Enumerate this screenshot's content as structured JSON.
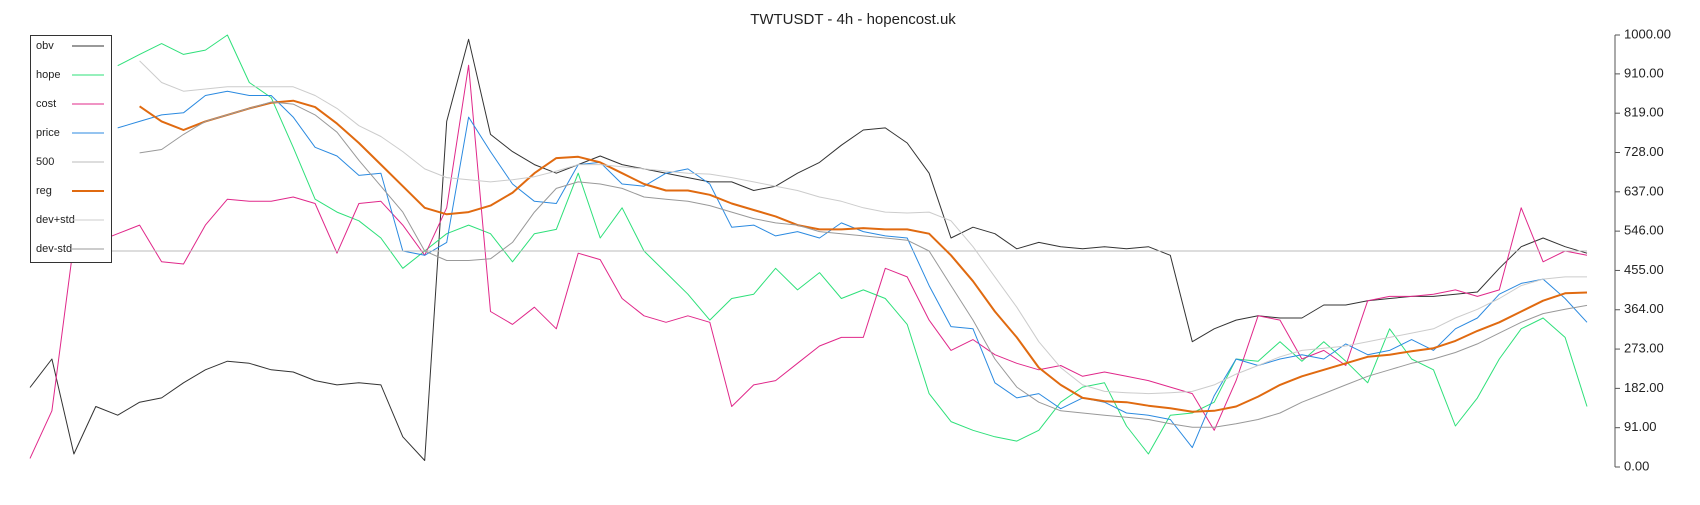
{
  "chart_data": {
    "type": "line",
    "title": "TWTUSDT - 4h - hopencost.uk",
    "ylim": [
      0,
      1000
    ],
    "yticks": [
      {
        "value": 0,
        "label": "0.00"
      },
      {
        "value": 91,
        "label": "91.00"
      },
      {
        "value": 182,
        "label": "182.00"
      },
      {
        "value": 273,
        "label": "273.00"
      },
      {
        "value": 364,
        "label": "364.00"
      },
      {
        "value": 455,
        "label": "455.00"
      },
      {
        "value": 546,
        "label": "546.00"
      },
      {
        "value": 637,
        "label": "637.00"
      },
      {
        "value": 728,
        "label": "728.00"
      },
      {
        "value": 819,
        "label": "819.00"
      },
      {
        "value": 910,
        "label": "910.00"
      },
      {
        "value": 1000,
        "label": "1000.00"
      }
    ],
    "yaxis_side": "right",
    "legend": "upper left",
    "series": [
      {
        "name": "obv",
        "color": "#333333",
        "width": 1,
        "values": [
          184,
          250,
          30,
          140,
          120,
          150,
          160,
          195,
          225,
          245,
          240,
          225,
          220,
          200,
          190,
          195,
          190,
          70,
          15,
          800,
          990,
          770,
          730,
          700,
          680,
          700,
          720,
          700,
          690,
          680,
          670,
          660,
          660,
          640,
          650,
          680,
          705,
          745,
          780,
          785,
          750,
          680,
          530,
          555,
          540,
          505,
          520,
          510,
          505,
          510,
          505,
          510,
          490,
          290,
          320,
          340,
          350,
          345,
          345,
          375,
          375,
          385,
          390,
          395,
          395,
          400,
          405,
          460,
          510,
          530,
          510,
          495
        ]
      },
      {
        "name": "hope",
        "color": "#2ee07a",
        "width": 1,
        "values": [
          null,
          null,
          null,
          null,
          929,
          955,
          980,
          955,
          965,
          1000,
          890,
          855,
          740,
          620,
          590,
          570,
          530,
          460,
          500,
          540,
          560,
          540,
          475,
          540,
          550,
          680,
          530,
          600,
          500,
          450,
          400,
          340,
          390,
          400,
          460,
          410,
          450,
          390,
          410,
          390,
          330,
          170,
          105,
          85,
          70,
          60,
          85,
          150,
          185,
          195,
          95,
          30,
          120,
          125,
          150,
          250,
          245,
          290,
          245,
          290,
          245,
          195,
          320,
          250,
          225,
          95,
          160,
          250,
          320,
          345,
          300,
          140
        ]
      },
      {
        "name": "cost",
        "color": "#e0288a",
        "width": 1,
        "values": [
          20,
          130,
          520,
          520,
          540,
          560,
          475,
          470,
          560,
          620,
          615,
          615,
          625,
          610,
          495,
          610,
          615,
          560,
          490,
          600,
          930,
          360,
          330,
          370,
          320,
          495,
          480,
          390,
          350,
          335,
          350,
          335,
          140,
          190,
          200,
          240,
          280,
          300,
          300,
          460,
          440,
          340,
          270,
          295,
          260,
          240,
          225,
          235,
          210,
          220,
          210,
          200,
          185,
          170,
          85,
          200,
          350,
          340,
          250,
          270,
          235,
          385,
          395,
          395,
          400,
          410,
          395,
          410,
          600,
          475,
          500,
          490
        ]
      },
      {
        "name": "price",
        "color": "#2b8ae0",
        "width": 1,
        "values": [
          null,
          null,
          null,
          null,
          785,
          800,
          815,
          820,
          860,
          870,
          860,
          860,
          810,
          740,
          720,
          675,
          680,
          500,
          490,
          520,
          810,
          730,
          655,
          615,
          610,
          700,
          705,
          655,
          650,
          680,
          690,
          655,
          555,
          560,
          535,
          545,
          530,
          565,
          545,
          535,
          530,
          420,
          325,
          320,
          195,
          160,
          170,
          135,
          160,
          150,
          125,
          120,
          110,
          45,
          165,
          250,
          235,
          250,
          260,
          250,
          285,
          260,
          270,
          295,
          270,
          320,
          345,
          400,
          425,
          435,
          390,
          335
        ]
      },
      {
        "name": "500",
        "color": "#bbbbbb",
        "width": 1,
        "values": [
          500,
          500,
          500,
          500,
          500,
          500,
          500,
          500,
          500,
          500,
          500,
          500,
          500,
          500,
          500,
          500,
          500,
          500,
          500,
          500,
          500,
          500,
          500,
          500,
          500,
          500,
          500,
          500,
          500,
          500,
          500,
          500,
          500,
          500,
          500,
          500,
          500,
          500,
          500,
          500,
          500,
          500,
          500,
          500,
          500,
          500,
          500,
          500,
          500,
          500,
          500,
          500,
          500,
          500,
          500,
          500,
          500,
          500,
          500,
          500,
          500,
          500,
          500,
          500,
          500,
          500,
          500,
          500,
          500,
          500,
          500,
          500
        ]
      },
      {
        "name": "reg",
        "color": "#e06a10",
        "width": 2,
        "values": [
          null,
          null,
          null,
          null,
          null,
          835,
          800,
          780,
          800,
          815,
          830,
          843,
          848,
          833,
          795,
          750,
          700,
          650,
          600,
          585,
          590,
          605,
          635,
          680,
          715,
          718,
          705,
          680,
          655,
          640,
          640,
          630,
          610,
          595,
          580,
          560,
          550,
          550,
          553,
          550,
          550,
          540,
          490,
          430,
          360,
          300,
          230,
          190,
          160,
          152,
          150,
          142,
          136,
          128,
          130,
          140,
          163,
          190,
          210,
          225,
          240,
          255,
          260,
          268,
          275,
          292,
          315,
          335,
          360,
          385,
          402,
          404
        ]
      },
      {
        "name": "dev+std",
        "color": "#cccccc",
        "width": 1,
        "values": [
          null,
          null,
          null,
          null,
          null,
          940,
          890,
          870,
          875,
          880,
          880,
          880,
          880,
          860,
          830,
          790,
          765,
          730,
          690,
          670,
          665,
          660,
          665,
          672,
          685,
          700,
          700,
          695,
          690,
          685,
          680,
          678,
          670,
          660,
          650,
          640,
          625,
          615,
          600,
          590,
          588,
          590,
          570,
          510,
          440,
          370,
          290,
          230,
          190,
          175,
          172,
          170,
          172,
          175,
          190,
          215,
          235,
          255,
          270,
          275,
          280,
          290,
          300,
          310,
          320,
          345,
          365,
          390,
          420,
          435,
          440,
          440
        ]
      },
      {
        "name": "dev-std",
        "color": "#999999",
        "width": 1,
        "values": [
          null,
          null,
          null,
          null,
          null,
          727,
          735,
          770,
          800,
          815,
          830,
          845,
          840,
          815,
          775,
          710,
          650,
          590,
          500,
          478,
          478,
          482,
          520,
          590,
          645,
          660,
          655,
          645,
          625,
          620,
          615,
          605,
          590,
          575,
          565,
          560,
          545,
          540,
          535,
          530,
          525,
          500,
          420,
          340,
          250,
          185,
          150,
          130,
          125,
          120,
          115,
          110,
          100,
          92,
          92,
          100,
          110,
          125,
          150,
          170,
          190,
          210,
          225,
          240,
          250,
          265,
          285,
          310,
          335,
          355,
          365,
          374
        ]
      }
    ]
  }
}
